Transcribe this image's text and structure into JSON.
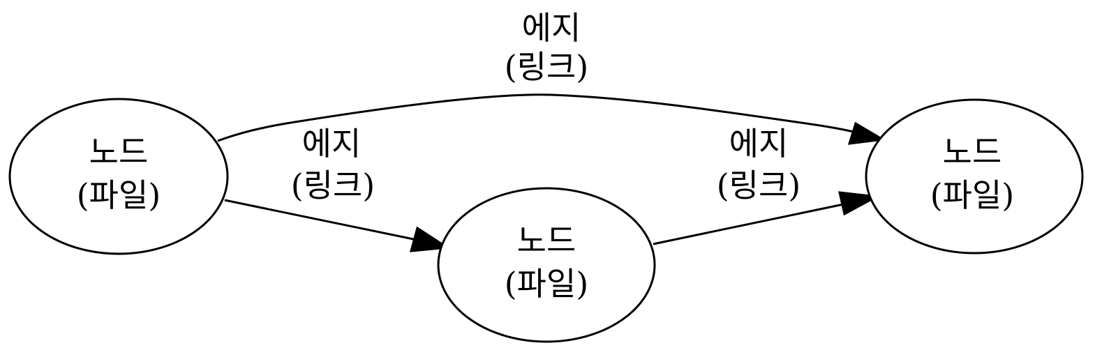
{
  "diagram": {
    "nodes": [
      {
        "id": "left",
        "line1": "노드",
        "line2": "(파일)"
      },
      {
        "id": "middle",
        "line1": "노드",
        "line2": "(파일)"
      },
      {
        "id": "right",
        "line1": "노드",
        "line2": "(파일)"
      }
    ],
    "edges": [
      {
        "from": "left",
        "to": "right",
        "line1": "에지",
        "line2": "(링크)"
      },
      {
        "from": "left",
        "to": "middle",
        "line1": "에지",
        "line2": "(링크)"
      },
      {
        "from": "middle",
        "to": "right",
        "line1": "에지",
        "line2": "(링크)"
      }
    ]
  }
}
